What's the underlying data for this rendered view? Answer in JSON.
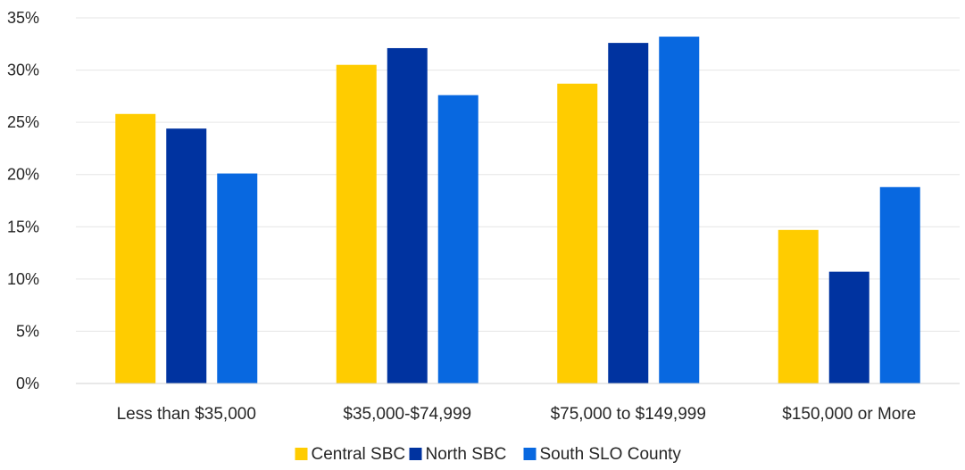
{
  "chart_data": {
    "type": "bar",
    "title": "",
    "xlabel": "",
    "ylabel": "",
    "ylim": [
      0,
      35
    ],
    "yticks": [
      "0%",
      "5%",
      "10%",
      "15%",
      "20%",
      "25%",
      "30%",
      "35%"
    ],
    "ytick_values": [
      0,
      5,
      10,
      15,
      20,
      25,
      30,
      35
    ],
    "grid": true,
    "legend_position": "bottom",
    "categories": [
      "Less than $35,000",
      "$35,000-$74,999",
      "$75,000 to $149,999",
      "$150,000 or More"
    ],
    "series": [
      {
        "name": "Central SBC",
        "color": "#ffcc00",
        "values": [
          25.8,
          30.5,
          28.7,
          14.7
        ]
      },
      {
        "name": "North SBC",
        "color": "#0033a0",
        "values": [
          24.4,
          32.1,
          32.6,
          10.7
        ]
      },
      {
        "name": "South SLO County",
        "color": "#0868e0",
        "values": [
          20.1,
          27.6,
          33.2,
          18.8
        ]
      }
    ]
  }
}
